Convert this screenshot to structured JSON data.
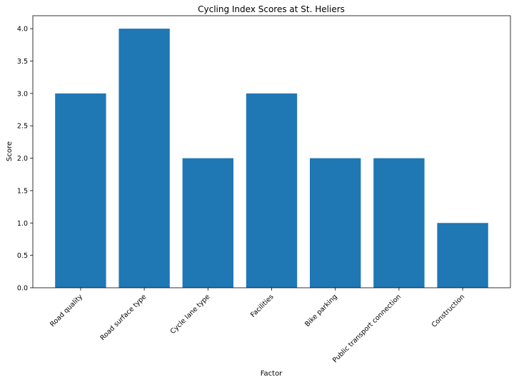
{
  "chart_data": {
    "type": "bar",
    "title": "Cycling Index Scores at St. Heliers",
    "xlabel": "Factor",
    "ylabel": "Score",
    "categories": [
      "Road quality",
      "Road surface type",
      "Cycle lane type",
      "Facilities",
      "Bike parking",
      "Public transport connection",
      "Construction"
    ],
    "values": [
      3,
      4,
      2,
      3,
      2,
      2,
      1
    ],
    "ylim": [
      0,
      4.2
    ],
    "yticks": [
      "0.0",
      "0.5",
      "1.0",
      "1.5",
      "2.0",
      "2.5",
      "3.0",
      "3.5",
      "4.0"
    ],
    "grid": false,
    "bar_color": "#1f77b4"
  }
}
